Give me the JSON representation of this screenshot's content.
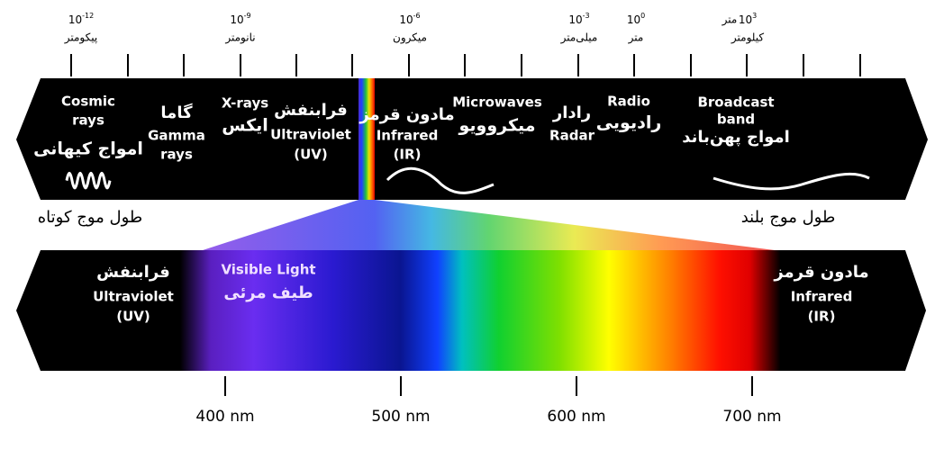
{
  "scale": [
    {
      "base": "10",
      "exp": "-12",
      "unit": "پیکومتر"
    },
    {
      "base": "10",
      "exp": "-9",
      "unit": "نانومتر"
    },
    {
      "base": "10",
      "exp": "-6",
      "unit": "میکرون"
    },
    {
      "base": "10",
      "exp": "-3",
      "unit": "میلی‌متر"
    },
    {
      "base": "10",
      "exp": "0",
      "unit": "متر"
    },
    {
      "base": "10",
      "exp": "3",
      "prefix": "متر",
      "unit": "کیلومتر"
    }
  ],
  "top_band": {
    "regions": [
      {
        "lines": [
          "Cosmic",
          "rays",
          "امواج کیهانی"
        ]
      },
      {
        "lines": [
          "گاما",
          "Gamma",
          "rays"
        ]
      },
      {
        "lines": [
          "X-rays",
          "ایکس"
        ]
      },
      {
        "lines": [
          "فرابنفش",
          "Ultraviolet",
          "(UV)"
        ]
      },
      {
        "lines": [
          "مادون قرمز",
          "Infrared",
          "(IR)"
        ]
      },
      {
        "lines": [
          "Microwaves",
          "میکروویو"
        ]
      },
      {
        "lines": [
          "رادار",
          "Radar"
        ]
      },
      {
        "lines": [
          "Radio",
          "رادیویی"
        ]
      },
      {
        "lines": [
          "Broadcast",
          "band",
          "امواج پهن‌باند"
        ]
      }
    ]
  },
  "short_wavelength": "طول موج کوتاه",
  "long_wavelength": "طول موج بلند",
  "visible_band": {
    "regions": [
      {
        "lines": [
          "فرابنفش",
          "Ultraviolet",
          "(UV)"
        ]
      },
      {
        "lines": [
          "Visible Light",
          "طیف مرئی"
        ]
      },
      {
        "lines": [
          "مادون قرمز",
          "Infrared",
          "(IR)"
        ]
      }
    ]
  },
  "wavelength_axis": [
    "400 nm",
    "500 nm",
    "600 nm",
    "700 nm"
  ]
}
